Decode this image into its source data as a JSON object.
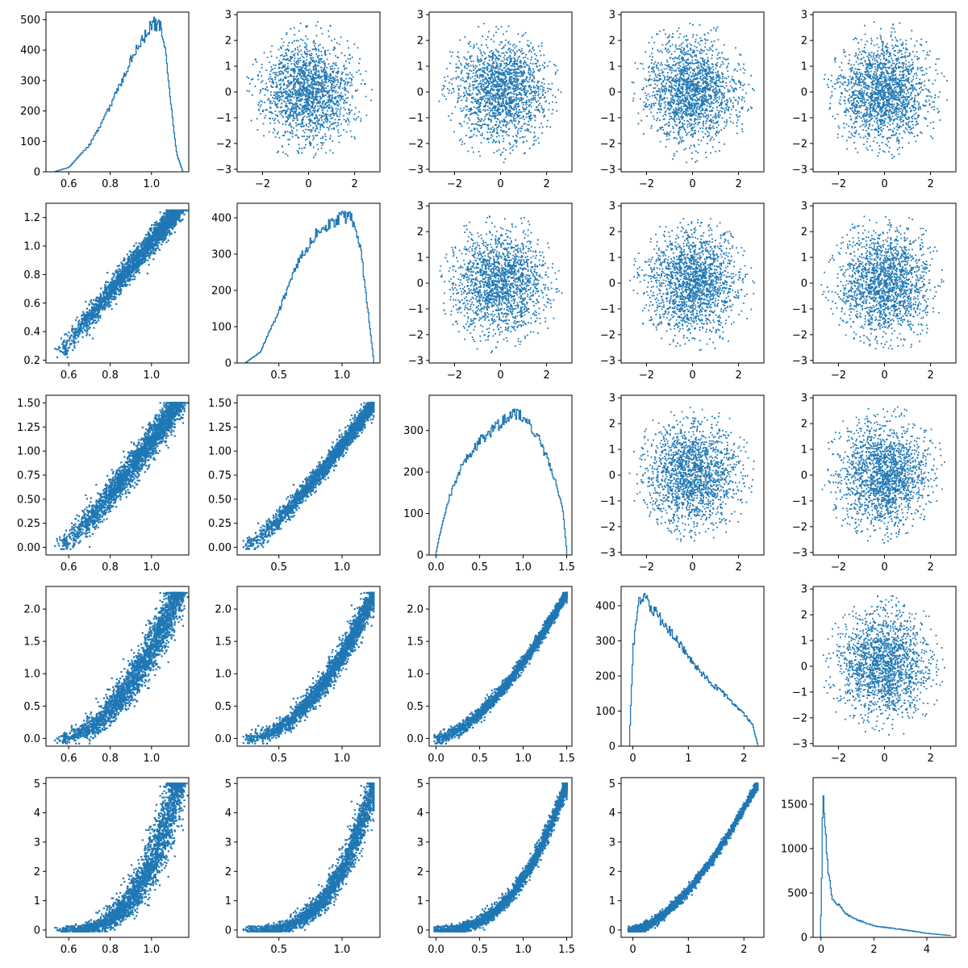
{
  "chart_data": {
    "type": "pair-grid",
    "layout": "5x5",
    "color": "#1f77b4",
    "diagonal": "step-histogram",
    "lower_triangle": "scatter (correlated, variables on constrained coordinates)",
    "upper_triangle": "scatter (independent standard normal pairs, truncated near ±2.8)",
    "variables": [
      {
        "range": [
          0.52,
          1.15
        ],
        "xticks": [
          0.6,
          0.8,
          1.0
        ],
        "xtick_labels": [
          "0.6",
          "0.8",
          "1.0"
        ]
      },
      {
        "range": [
          0.22,
          1.25
        ],
        "xticks": [
          0.5,
          1.0
        ],
        "xtick_labels": [
          "0.5",
          "1.0"
        ],
        "yticks": [
          0.2,
          0.4,
          0.6,
          0.8,
          1.0,
          1.2
        ],
        "ytick_labels": [
          "0.2",
          "0.4",
          "0.6",
          "0.8",
          "1.0",
          "1.2"
        ]
      },
      {
        "range": [
          -0.02,
          1.5
        ],
        "xticks": [
          0.0,
          0.5,
          1.0,
          1.5
        ],
        "xtick_labels": [
          "0.0",
          "0.5",
          "1.0",
          "1.5"
        ],
        "yticks": [
          0.0,
          0.25,
          0.5,
          0.75,
          1.0,
          1.25,
          1.5
        ],
        "ytick_labels": [
          "0.00",
          "0.25",
          "0.50",
          "0.75",
          "1.00",
          "1.25",
          "1.50"
        ]
      },
      {
        "range": [
          -0.08,
          2.25
        ],
        "xticks": [
          0,
          1,
          2
        ],
        "xtick_labels": [
          "0",
          "1",
          "2"
        ],
        "yticks": [
          0.0,
          0.5,
          1.0,
          1.5,
          2.0
        ],
        "ytick_labels": [
          "0.0",
          "0.5",
          "1.0",
          "1.5",
          "2.0"
        ]
      },
      {
        "range": [
          -0.05,
          5.0
        ],
        "xticks": [
          0,
          2,
          4
        ],
        "xtick_labels": [
          "0",
          "2",
          "4"
        ],
        "yticks": [
          0,
          1,
          2,
          3,
          4,
          5
        ],
        "ytick_labels": [
          "0",
          "1",
          "2",
          "3",
          "4",
          "5"
        ]
      }
    ],
    "upper_axes": {
      "lim": [
        -3.1,
        3.1
      ],
      "xticks": [
        -2,
        0,
        2
      ],
      "xtick_labels": [
        "−2",
        "0",
        "2"
      ],
      "yticks": [
        -3,
        -2,
        -1,
        0,
        1,
        2,
        3
      ],
      "ytick_labels": [
        "−3",
        "−2",
        "−1",
        "0",
        "1",
        "2",
        "3"
      ]
    },
    "histograms": [
      {
        "variable": 0,
        "xlim": [
          0.49,
          1.18
        ],
        "ylim": [
          0,
          525
        ],
        "yticks": [
          0,
          100,
          200,
          300,
          400,
          500
        ],
        "ytick_labels": [
          "0",
          "100",
          "200",
          "300",
          "400",
          "500"
        ],
        "profile": [
          [
            0.53,
            0
          ],
          [
            0.6,
            15
          ],
          [
            0.7,
            90
          ],
          [
            0.8,
            215
          ],
          [
            0.9,
            370
          ],
          [
            0.98,
            460
          ],
          [
            1.0,
            490
          ],
          [
            1.04,
            480
          ],
          [
            1.07,
            380
          ],
          [
            1.09,
            230
          ],
          [
            1.12,
            60
          ],
          [
            1.15,
            0
          ]
        ]
      },
      {
        "variable": 1,
        "xlim": [
          0.17,
          1.3
        ],
        "ylim": [
          0,
          440
        ],
        "yticks": [
          0,
          100,
          200,
          300,
          400
        ],
        "ytick_labels": [
          "0",
          "100",
          "200",
          "300",
          "400"
        ],
        "profile": [
          [
            0.23,
            0
          ],
          [
            0.35,
            30
          ],
          [
            0.5,
            145
          ],
          [
            0.65,
            280
          ],
          [
            0.8,
            360
          ],
          [
            0.95,
            395
          ],
          [
            1.05,
            405
          ],
          [
            1.1,
            380
          ],
          [
            1.15,
            300
          ],
          [
            1.2,
            150
          ],
          [
            1.25,
            0
          ]
        ]
      },
      {
        "variable": 2,
        "xlim": [
          -0.08,
          1.56
        ],
        "ylim": [
          0,
          385
        ],
        "yticks": [
          0,
          100,
          200,
          300
        ],
        "ytick_labels": [
          "0",
          "100",
          "200",
          "300"
        ],
        "profile": [
          [
            -0.01,
            0
          ],
          [
            0.05,
            60
          ],
          [
            0.15,
            140
          ],
          [
            0.3,
            220
          ],
          [
            0.5,
            275
          ],
          [
            0.75,
            320
          ],
          [
            0.9,
            345
          ],
          [
            1.05,
            320
          ],
          [
            1.2,
            270
          ],
          [
            1.35,
            190
          ],
          [
            1.45,
            110
          ],
          [
            1.5,
            0
          ]
        ]
      },
      {
        "variable": 3,
        "xlim": [
          -0.21,
          2.36
        ],
        "ylim": [
          0,
          455
        ],
        "yticks": [
          0,
          100,
          200,
          300,
          400
        ],
        "ytick_labels": [
          "0",
          "100",
          "200",
          "300",
          "400"
        ],
        "profile": [
          [
            -0.07,
            0
          ],
          [
            0.0,
            280
          ],
          [
            0.1,
            420
          ],
          [
            0.2,
            425
          ],
          [
            0.5,
            360
          ],
          [
            0.8,
            300
          ],
          [
            1.1,
            230
          ],
          [
            1.4,
            180
          ],
          [
            1.7,
            140
          ],
          [
            2.0,
            90
          ],
          [
            2.15,
            60
          ],
          [
            2.25,
            0
          ]
        ]
      },
      {
        "variable": 4,
        "xlim": [
          -0.3,
          5.1
        ],
        "ylim": [
          0,
          1800
        ],
        "yticks": [
          0,
          500,
          1000,
          1500
        ],
        "ytick_labels": [
          "0",
          "500",
          "1000",
          "1500"
        ],
        "profile": [
          [
            -0.05,
            0
          ],
          [
            0.0,
            400
          ],
          [
            0.06,
            1680
          ],
          [
            0.15,
            1200
          ],
          [
            0.25,
            760
          ],
          [
            0.4,
            450
          ],
          [
            0.6,
            380
          ],
          [
            1.0,
            250
          ],
          [
            1.5,
            180
          ],
          [
            2.0,
            130
          ],
          [
            3.0,
            90
          ],
          [
            4.0,
            45
          ],
          [
            4.9,
            20
          ]
        ]
      }
    ],
    "relations": [
      {
        "row": 1,
        "col": 0,
        "relation": "y ≈ 1.75·x − 0.75, spread ≈ 0.05",
        "ylim": [
          0.18,
          1.3
        ]
      },
      {
        "row": 2,
        "col": 0,
        "relation": "y ≈ 2.4·(x − 0.52)",
        "ylim": [
          -0.08,
          1.58
        ]
      },
      {
        "row": 2,
        "col": 1,
        "relation": "y ≈ 1.2·(x − 0.22)^1.3 scaled to 1.5",
        "ylim": [
          -0.08,
          1.58
        ]
      },
      {
        "row": 3,
        "col": 0,
        "relation": "y grows steeply near x = 1.1",
        "ylim": [
          -0.12,
          2.35
        ]
      },
      {
        "row": 3,
        "col": 1,
        "relation": "y grows steeply near x = 1.25",
        "ylim": [
          -0.12,
          2.35
        ]
      },
      {
        "row": 3,
        "col": 2,
        "relation": "y ≈ x^1.6 scaled to 2.25 at 1.5",
        "ylim": [
          -0.12,
          2.35
        ]
      },
      {
        "row": 4,
        "col": 0,
        "relation": "y exponential in x up to 5",
        "ylim": [
          -0.25,
          5.2
        ]
      },
      {
        "row": 4,
        "col": 1,
        "relation": "y exponential in x up to 5",
        "ylim": [
          -0.25,
          5.2
        ]
      },
      {
        "row": 4,
        "col": 2,
        "relation": "y exponential in x up to 5",
        "ylim": [
          -0.25,
          5.2
        ]
      },
      {
        "row": 4,
        "col": 3,
        "relation": "y ≈ x^1.6 scaled to 5 at 2.25",
        "ylim": [
          -0.25,
          5.2
        ]
      }
    ]
  }
}
